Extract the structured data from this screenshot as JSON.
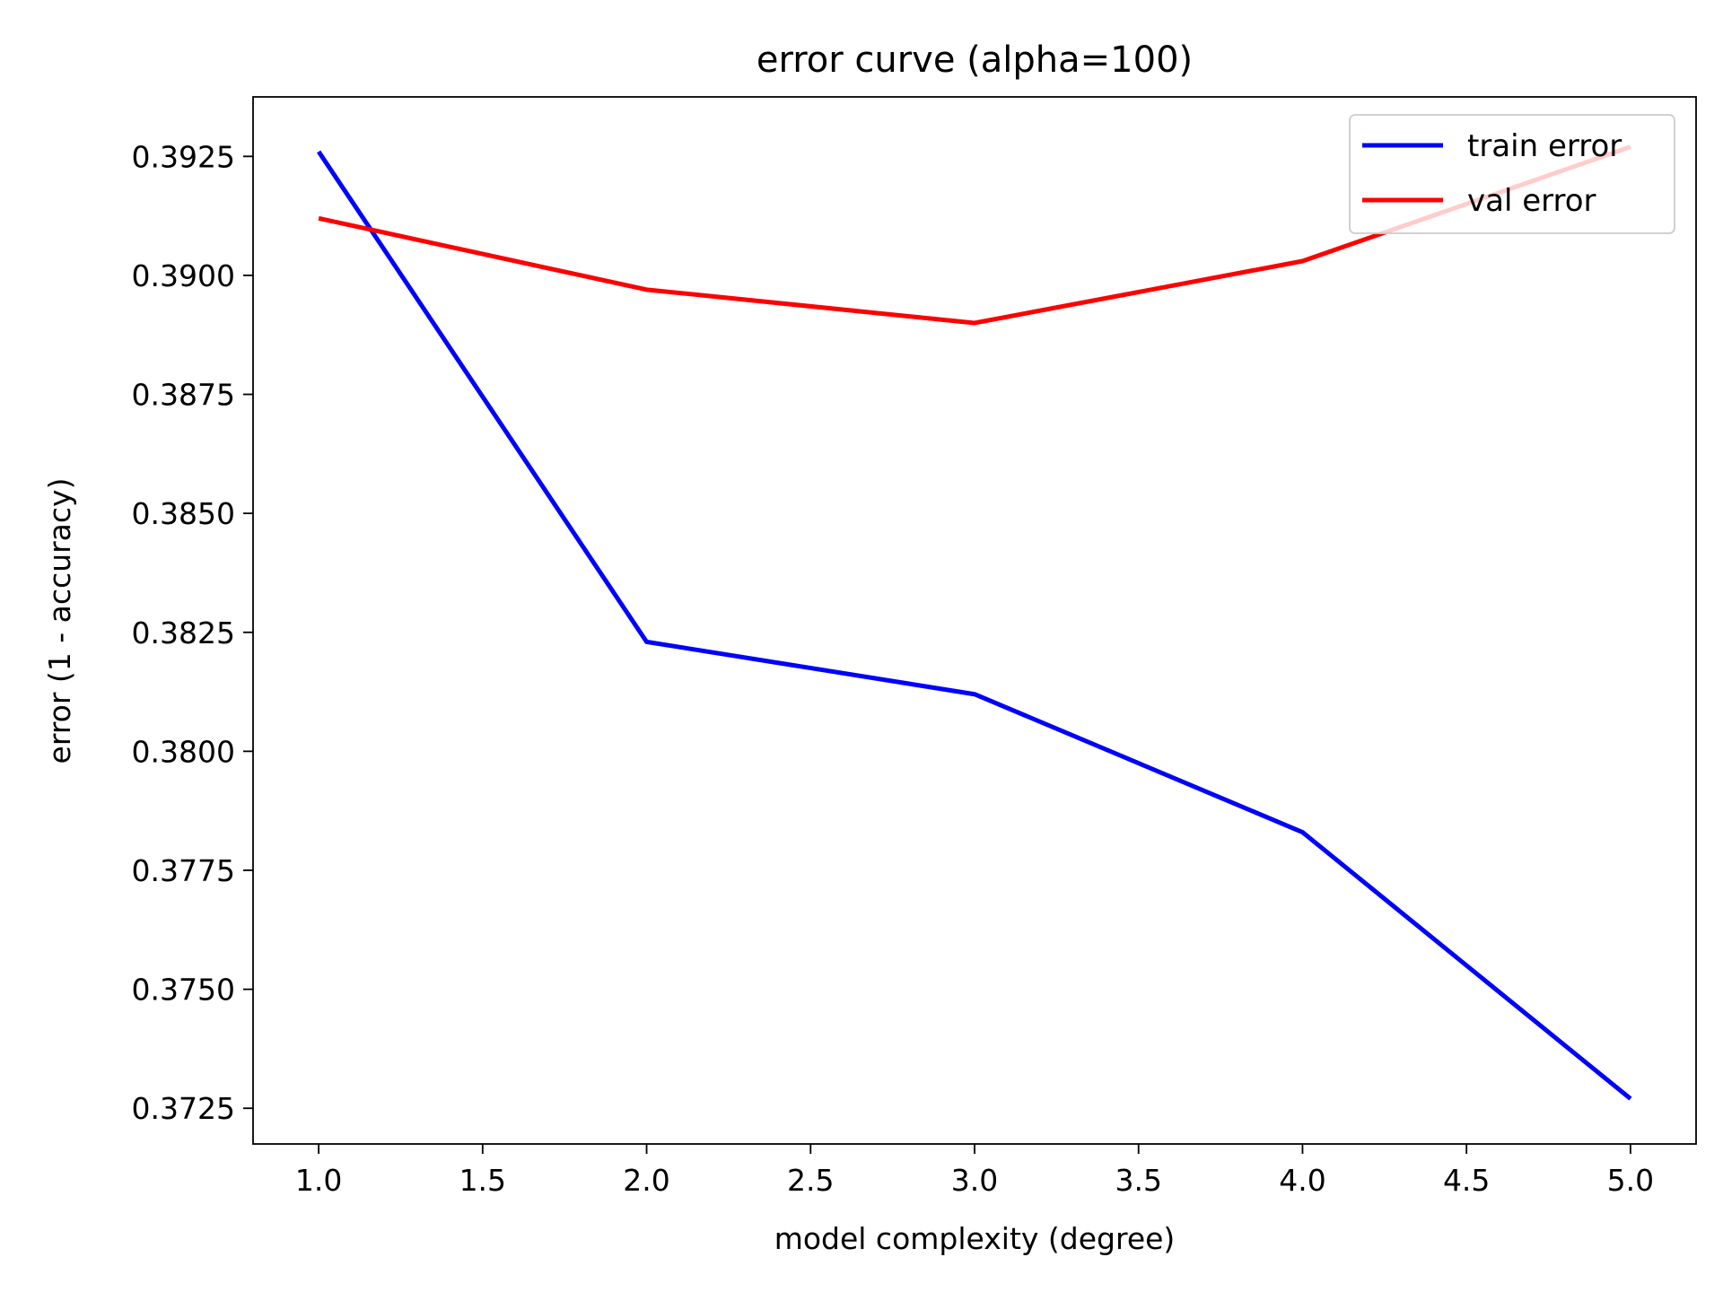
{
  "chart_data": {
    "type": "line",
    "title": "error curve (alpha=100)",
    "xlabel": "model complexity (degree)",
    "ylabel": "error (1 - accuracy)",
    "xlim": [
      0.8,
      5.2
    ],
    "ylim": [
      0.37175,
      0.39375
    ],
    "x_ticks": [
      1.0,
      1.5,
      2.0,
      2.5,
      3.0,
      3.5,
      4.0,
      4.5,
      5.0
    ],
    "x_tick_labels": [
      "1.0",
      "1.5",
      "2.0",
      "2.5",
      "3.0",
      "3.5",
      "4.0",
      "4.5",
      "5.0"
    ],
    "y_ticks": [
      0.3725,
      0.375,
      0.3775,
      0.38,
      0.3825,
      0.385,
      0.3875,
      0.39,
      0.3925
    ],
    "y_tick_labels": [
      "0.3725",
      "0.3750",
      "0.3775",
      "0.3800",
      "0.3825",
      "0.3850",
      "0.3875",
      "0.3900",
      "0.3925"
    ],
    "grid": false,
    "legend_position": "top-right",
    "x": [
      1,
      2,
      3,
      4,
      5
    ],
    "series": [
      {
        "name": "train error",
        "color": "#0000ff",
        "values": [
          0.3926,
          0.3823,
          0.3812,
          0.3783,
          0.3727
        ]
      },
      {
        "name": "val error",
        "color": "#ff0000",
        "values": [
          0.3912,
          0.3897,
          0.389,
          0.3903,
          0.3927
        ]
      }
    ]
  }
}
